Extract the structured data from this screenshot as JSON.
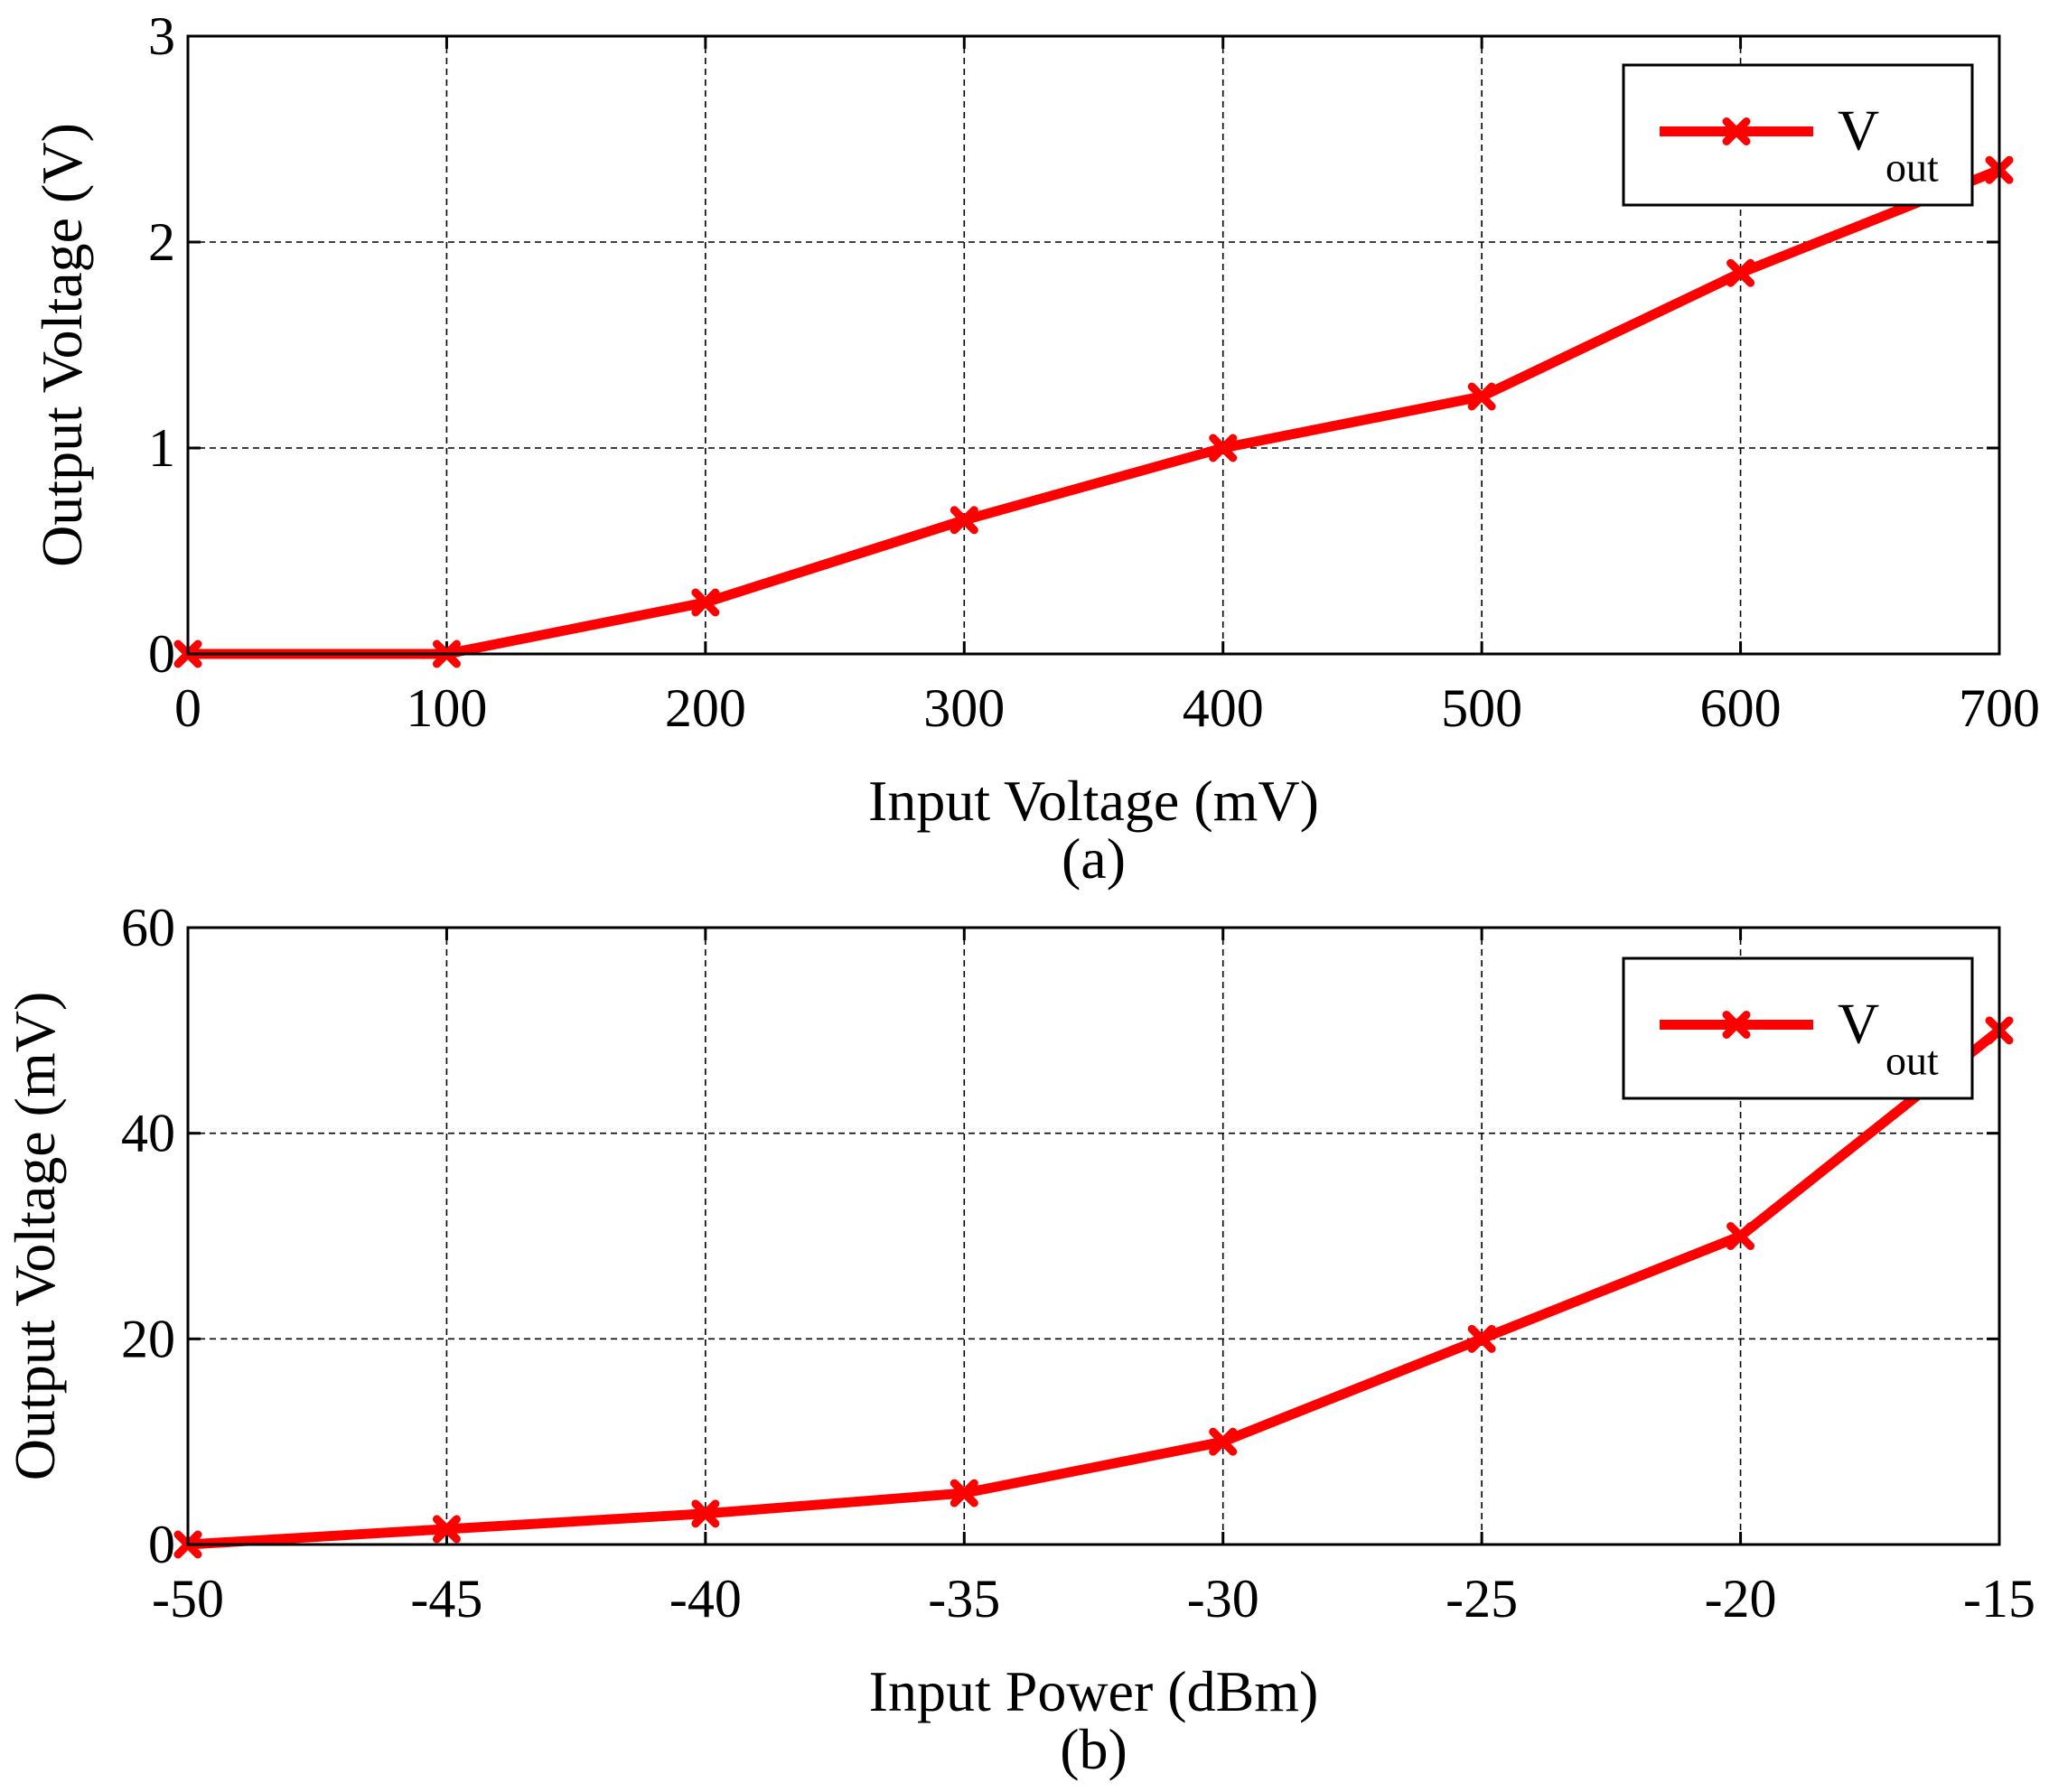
{
  "chart_data": [
    {
      "type": "line",
      "caption": "(a)",
      "xlabel": "Input Voltage (mV)",
      "ylabel": "Output Voltage (V)",
      "xlim": [
        0,
        700
      ],
      "ylim": [
        0,
        3
      ],
      "xticks": [
        0,
        100,
        200,
        300,
        400,
        500,
        600,
        700
      ],
      "yticks": [
        0,
        1,
        2,
        3
      ],
      "xtick_labels": [
        "0",
        "100",
        "200",
        "300",
        "400",
        "500",
        "600",
        "700"
      ],
      "ytick_labels": [
        "0",
        "1",
        "2",
        "3"
      ],
      "grid": true,
      "legend": {
        "position": "top-right",
        "label": "V",
        "subscript": "out"
      },
      "series": [
        {
          "name": "Vout",
          "color": "#ff0000",
          "marker": "x",
          "x": [
            0,
            100,
            200,
            300,
            400,
            500,
            600,
            700
          ],
          "values": [
            0.0,
            0.0,
            0.25,
            0.65,
            1.0,
            1.25,
            1.85,
            2.35
          ]
        }
      ]
    },
    {
      "type": "line",
      "caption": "(b)",
      "xlabel": "Input Power (dBm)",
      "ylabel": "Output Voltage (mV)",
      "xlim": [
        -50,
        -15
      ],
      "ylim": [
        0,
        60
      ],
      "xticks": [
        -50,
        -45,
        -40,
        -35,
        -30,
        -25,
        -20,
        -15
      ],
      "yticks": [
        0,
        20,
        40,
        60
      ],
      "xtick_labels": [
        "-50",
        "-45",
        "-40",
        "-35",
        "-30",
        "-25",
        "-20",
        "-15"
      ],
      "ytick_labels": [
        "0",
        "20",
        "40",
        "60"
      ],
      "grid": true,
      "legend": {
        "position": "top-right",
        "label": "V",
        "subscript": "out"
      },
      "series": [
        {
          "name": "Vout",
          "color": "#ff0000",
          "marker": "x",
          "x": [
            -50,
            -45,
            -40,
            -35,
            -30,
            -25,
            -20,
            -15
          ],
          "values": [
            0,
            1.5,
            3,
            5,
            10,
            20,
            30,
            50
          ]
        }
      ]
    }
  ]
}
